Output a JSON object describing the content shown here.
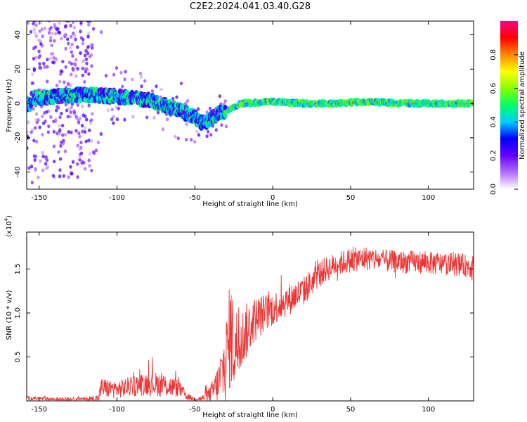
{
  "title": "C2E2.2024.041.03.40.G28",
  "chart_data": [
    {
      "type": "heatmap",
      "xlabel": "Height of straight line (km)",
      "ylabel": "Frequency (Hz)",
      "xlim": [
        -158,
        129
      ],
      "ylim": [
        -50,
        48
      ],
      "xticks": [
        -150,
        -100,
        -50,
        0,
        50,
        100
      ],
      "yticks": [
        -40,
        -20,
        0,
        20,
        40
      ],
      "colorbar": {
        "label": "Normalized spectral amplitude",
        "range": [
          0,
          1
        ],
        "ticks": [
          "0.0",
          "0.2",
          "0.4",
          "0.6",
          "0.8"
        ],
        "colors": [
          "#ffffff",
          "#b070ff",
          "#6600ff",
          "#0000ff",
          "#00ccff",
          "#00ff66",
          "#88ff00",
          "#ffff00",
          "#ff8800",
          "#ff0000",
          "#ff0080"
        ]
      },
      "description_series": {
        "name": "dominant frequency ridge",
        "x": [
          -155,
          -140,
          -120,
          -100,
          -80,
          -60,
          -50,
          -45,
          -35,
          -30,
          -20,
          0,
          20,
          40,
          60,
          80,
          100,
          120,
          129
        ],
        "y": [
          3,
          4,
          5,
          4,
          2,
          -4,
          -8,
          -12,
          -6,
          -4,
          0,
          1,
          0,
          0,
          1,
          0,
          0,
          0,
          0
        ]
      }
    },
    {
      "type": "line",
      "xlabel": "Height of straight line (km)",
      "ylabel": "SNR (10 * v/v)",
      "yscale_label": "(x10",
      "yscale_exp": "4",
      "xlim": [
        -158,
        129
      ],
      "ylim": [
        0,
        1.92
      ],
      "xticks": [
        -150,
        -100,
        -50,
        0,
        50,
        100
      ],
      "yticks": [
        "0.5",
        "1.0",
        "1.5"
      ],
      "ytick_values": [
        0.5,
        1.0,
        1.5
      ],
      "series": [
        {
          "color": "#ee3333",
          "x": [
            -158,
            -140,
            -120,
            -112,
            -110,
            -100,
            -90,
            -80,
            -70,
            -60,
            -55,
            -50,
            -45,
            -40,
            -35,
            -30,
            -27,
            -25,
            -20,
            -15,
            -10,
            -5,
            0,
            10,
            20,
            25,
            30,
            40,
            50,
            60,
            70,
            80,
            90,
            100,
            110,
            120,
            129
          ],
          "y": [
            0.03,
            0.02,
            0.02,
            0.03,
            0.15,
            0.13,
            0.17,
            0.2,
            0.18,
            0.14,
            0.05,
            0.02,
            0.03,
            0.08,
            0.2,
            0.45,
            0.8,
            0.6,
            0.7,
            0.85,
            0.95,
            1.0,
            1.05,
            1.15,
            1.25,
            1.35,
            1.45,
            1.55,
            1.6,
            1.62,
            1.6,
            1.58,
            1.58,
            1.57,
            1.56,
            1.55,
            1.52
          ],
          "noise": [
            0.02,
            0.02,
            0.02,
            0.05,
            0.12,
            0.1,
            0.12,
            0.14,
            0.14,
            0.1,
            0.04,
            0.02,
            0.04,
            0.1,
            0.22,
            0.5,
            0.65,
            0.5,
            0.35,
            0.3,
            0.25,
            0.22,
            0.2,
            0.18,
            0.17,
            0.16,
            0.15,
            0.14,
            0.14,
            0.14,
            0.13,
            0.13,
            0.13,
            0.13,
            0.13,
            0.13,
            0.13
          ]
        }
      ]
    }
  ]
}
